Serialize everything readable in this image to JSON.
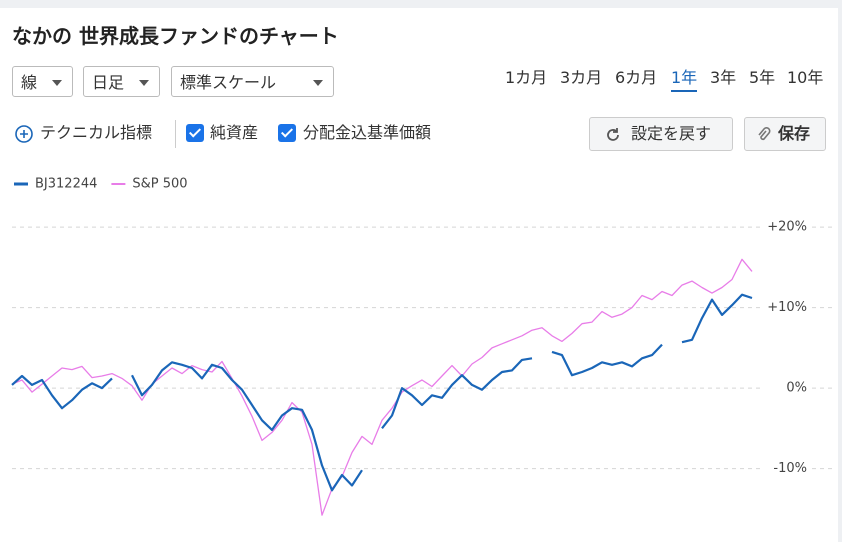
{
  "header": {
    "title": "なかの 世界成長ファンドのチャート"
  },
  "controls": {
    "dropdowns": [
      "線",
      "日足",
      "標準スケール"
    ],
    "periods": [
      "1カ月",
      "3カ月",
      "6カ月",
      "1年",
      "3年",
      "5年",
      "10年"
    ]
  },
  "toolbar": {
    "technical": "テクニカル指標",
    "checks": [
      "純資産",
      "分配金込基準価額"
    ],
    "reset": "設定を戻す",
    "save": "保存"
  },
  "chart_data": {
    "type": "line",
    "ylim": [
      -19,
      23
    ],
    "yticks": [
      {
        "value": 20,
        "label": "+20%"
      },
      {
        "value": 10,
        "label": "+10%"
      },
      {
        "value": 0,
        "label": "0%"
      },
      {
        "value": -10,
        "label": "-10%"
      }
    ],
    "grid": true,
    "series": [
      {
        "name": "BJ312244",
        "color": "#1a66b8",
        "values": [
          0.4,
          1.5,
          0.4,
          1,
          -0.9,
          -2.5,
          -1.5,
          -0.2,
          0.6,
          0,
          1.2,
          null,
          1.6,
          -0.9,
          0.4,
          2.2,
          3.2,
          2.9,
          2.5,
          1.2,
          2.9,
          2.5,
          1,
          -0.2,
          -2.1,
          -4,
          -5.2,
          -3.4,
          -2.5,
          -2.7,
          -5.2,
          -9.6,
          -12.7,
          -10.8,
          -12.1,
          -10.2,
          null,
          -5,
          -3.4,
          0,
          -0.9,
          -2.1,
          -0.9,
          -1.2,
          0.4,
          1.6,
          0.4,
          -0.2,
          1,
          2,
          2.2,
          3.5,
          3.7,
          null,
          4.5,
          4.1,
          1.6,
          2,
          2.5,
          3.2,
          2.9,
          3.2,
          2.7,
          3.7,
          4.1,
          5.4,
          null,
          5.7,
          6,
          8.7,
          11,
          9.1,
          10.3,
          11.6,
          11.2
        ]
      },
      {
        "name": "S&P 500",
        "color": "#e87de8",
        "values": [
          0.5,
          1,
          -0.5,
          0.5,
          1.5,
          2.5,
          2.3,
          2.7,
          1.3,
          1.5,
          1.8,
          1.2,
          0.3,
          -1.5,
          0.5,
          1.5,
          2.5,
          1.8,
          2.8,
          2.3,
          2.0,
          3.3,
          1.2,
          -1.0,
          -3.5,
          -6.5,
          -5.5,
          -4,
          -1.8,
          -3.0,
          -7,
          -15.8,
          -12.5,
          -11,
          -8,
          -6,
          -7,
          -4,
          -2.5,
          -0.5,
          0.3,
          1,
          0.2,
          1.5,
          2.8,
          1.5,
          3,
          3.8,
          5,
          5.5,
          6,
          6.5,
          7.2,
          7.5,
          6.5,
          5.8,
          6.8,
          8,
          8.2,
          9.5,
          8.8,
          9.2,
          10,
          11.5,
          11,
          12,
          11.5,
          12.8,
          13.3,
          12.5,
          11.8,
          12.5,
          13.5,
          16,
          14.5
        ]
      }
    ]
  }
}
